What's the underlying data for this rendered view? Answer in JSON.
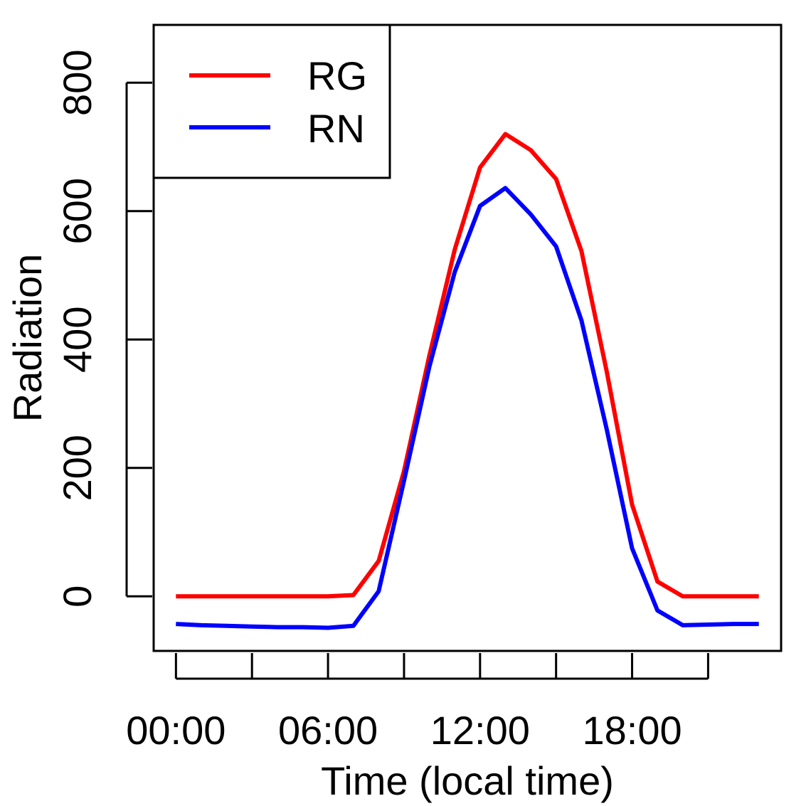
{
  "chart_data": {
    "type": "line",
    "xlabel": "Time (local time)",
    "ylabel": "Radiation",
    "x": [
      0,
      1,
      2,
      3,
      4,
      5,
      6,
      7,
      8,
      9,
      10,
      11,
      12,
      13,
      14,
      15,
      16,
      17,
      18,
      19,
      20,
      21,
      22,
      23
    ],
    "xlim": [
      -0.88,
      23.88
    ],
    "ylim": [
      -85,
      890
    ],
    "x_ticks": [
      0,
      3,
      6,
      9,
      12,
      15,
      18,
      21
    ],
    "x_tick_labels": [
      {
        "x": 0,
        "label": "00:00"
      },
      {
        "x": 6,
        "label": "06:00"
      },
      {
        "x": 12,
        "label": "12:00"
      },
      {
        "x": 18,
        "label": "18:00"
      }
    ],
    "y_ticks": [
      0,
      200,
      400,
      600,
      800
    ],
    "y_tick_labels": [
      "0",
      "200",
      "400",
      "600",
      "800"
    ],
    "grid": false,
    "legend_position": "top-left",
    "series": [
      {
        "name": "RG",
        "color": "#ff0000",
        "values": [
          0,
          0,
          0,
          0,
          0,
          0,
          0,
          2,
          55,
          195,
          375,
          540,
          668,
          720,
          695,
          650,
          538,
          350,
          143,
          23,
          0,
          0,
          0,
          0
        ]
      },
      {
        "name": "RN",
        "color": "#0000ff",
        "values": [
          -43,
          -45,
          -46,
          -47,
          -48,
          -48,
          -49,
          -46,
          8,
          180,
          358,
          505,
          608,
          636,
          595,
          545,
          430,
          260,
          75,
          -22,
          -45,
          -44,
          -43,
          -43
        ]
      }
    ]
  }
}
